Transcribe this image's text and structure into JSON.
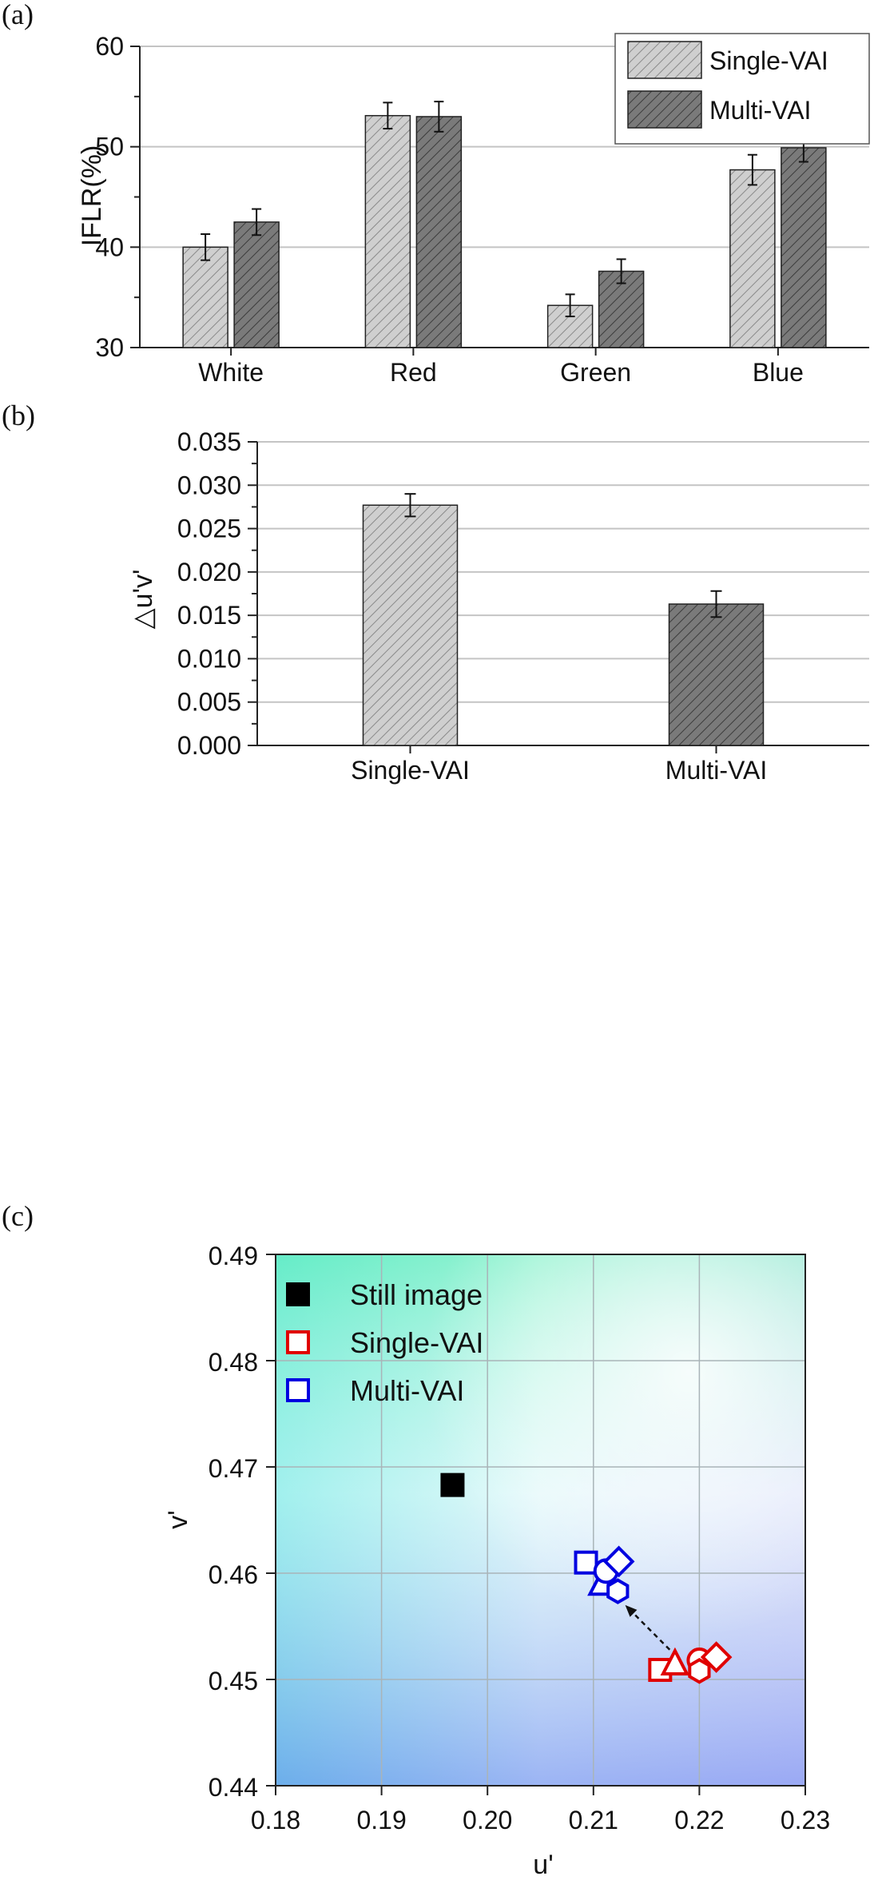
{
  "chart_data": [
    {
      "type": "bar",
      "panel_label": "(a)",
      "categories": [
        "White",
        "Red",
        "Green",
        "Blue"
      ],
      "series": [
        {
          "name": "Single-VAI",
          "values": [
            40.0,
            53.1,
            34.2,
            47.7
          ],
          "errors": [
            1.3,
            1.3,
            1.1,
            1.5
          ],
          "color": "#c8c8c8"
        },
        {
          "name": "Multi-VAI",
          "values": [
            42.5,
            53.0,
            37.6,
            49.9
          ],
          "errors": [
            1.3,
            1.5,
            1.2,
            1.4
          ],
          "color": "#808080"
        }
      ],
      "ylabel": "IFLR(%)",
      "ylim": [
        30,
        60
      ],
      "yticks": [
        "30",
        "40",
        "50",
        "60"
      ],
      "grid": true,
      "legend": "top-right"
    },
    {
      "type": "bar",
      "panel_label": "(b)",
      "categories": [
        "Single-VAI",
        "Multi-VAI"
      ],
      "values": [
        0.0277,
        0.0163
      ],
      "errors": [
        0.0013,
        0.0015
      ],
      "colors": [
        "#c8c8c8",
        "#808080"
      ],
      "ylabel": "△u'v'",
      "ylim": [
        0,
        0.035
      ],
      "yticks": [
        "0.000",
        "0.005",
        "0.010",
        "0.015",
        "0.020",
        "0.025",
        "0.030",
        "0.035"
      ],
      "grid": true
    },
    {
      "type": "scatter",
      "panel_label": "(c)",
      "xlabel": "u'",
      "ylabel": "v'",
      "xlim": [
        0.18,
        0.23
      ],
      "ylim": [
        0.44,
        0.49
      ],
      "xticks": [
        "0.18",
        "0.19",
        "0.20",
        "0.21",
        "0.22",
        "0.23"
      ],
      "yticks": [
        "0.44",
        "0.45",
        "0.46",
        "0.47",
        "0.48",
        "0.49"
      ],
      "grid": true,
      "legend": "top-left",
      "series": [
        {
          "name": "Still image",
          "color": "#000000",
          "filled": true,
          "points": [
            {
              "x": 0.1967,
              "y": 0.4683,
              "marker": "square"
            }
          ]
        },
        {
          "name": "Single-VAI",
          "color": "#e00000",
          "filled": false,
          "points": [
            {
              "x": 0.2163,
              "y": 0.4509,
              "marker": "square"
            },
            {
              "x": 0.2177,
              "y": 0.4515,
              "marker": "triangle"
            },
            {
              "x": 0.22,
              "y": 0.4518,
              "marker": "circle"
            },
            {
              "x": 0.22,
              "y": 0.4508,
              "marker": "hexagon"
            },
            {
              "x": 0.2216,
              "y": 0.4521,
              "marker": "diamond"
            }
          ]
        },
        {
          "name": "Multi-VAI",
          "color": "#0000e0",
          "filled": false,
          "points": [
            {
              "x": 0.2093,
              "y": 0.461,
              "marker": "square"
            },
            {
              "x": 0.2108,
              "y": 0.459,
              "marker": "triangle"
            },
            {
              "x": 0.2112,
              "y": 0.4602,
              "marker": "circle"
            },
            {
              "x": 0.2123,
              "y": 0.4583,
              "marker": "hexagon"
            },
            {
              "x": 0.2124,
              "y": 0.4611,
              "marker": "diamond"
            }
          ]
        }
      ]
    }
  ]
}
